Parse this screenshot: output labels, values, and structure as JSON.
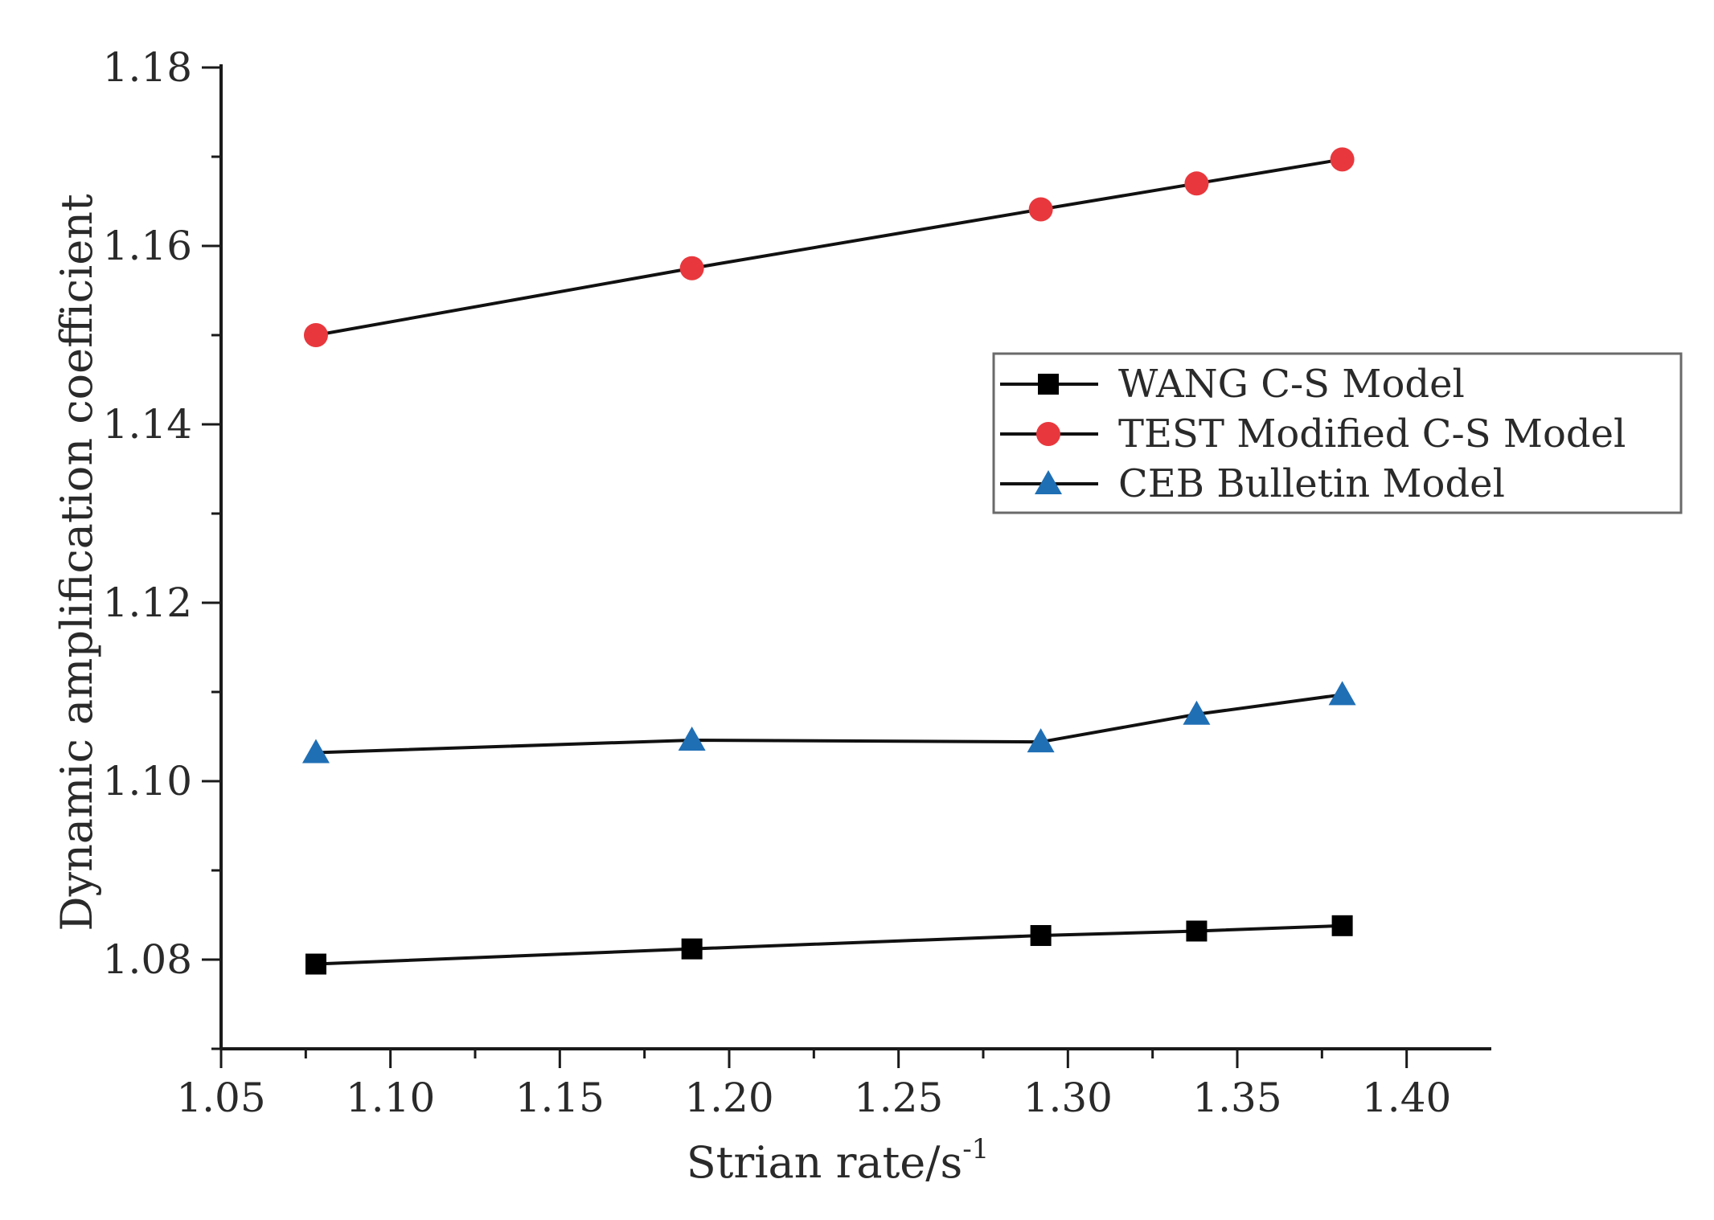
{
  "chart_data": {
    "type": "line",
    "title": "",
    "xlabel": "Strian rate/s",
    "xlabel_superscript": "-1",
    "ylabel": "Dynamic amplification coefficient",
    "xlim": [
      1.05,
      1.425
    ],
    "ylim": [
      1.07,
      1.18
    ],
    "xticks": [
      1.05,
      1.1,
      1.15,
      1.2,
      1.25,
      1.3,
      1.35,
      1.4
    ],
    "xtick_labels": [
      "1.05",
      "1.10",
      "1.15",
      "1.20",
      "1.25",
      "1.30",
      "1.35",
      "1.40"
    ],
    "yticks": [
      1.08,
      1.1,
      1.12,
      1.14,
      1.16,
      1.18
    ],
    "ytick_labels": [
      "1.08",
      "1.10",
      "1.12",
      "1.14",
      "1.16",
      "1.18"
    ],
    "grid": false,
    "legend_position": "upper-right",
    "x": [
      1.078,
      1.189,
      1.292,
      1.338,
      1.381
    ],
    "series": [
      {
        "name": "WANG C-S Model",
        "marker": "square",
        "color": "#000000",
        "values": [
          1.0795,
          1.0812,
          1.0827,
          1.0832,
          1.0838
        ]
      },
      {
        "name": "TEST Modified C-S Model",
        "marker": "circle",
        "color": "#e8383d",
        "values": [
          1.15,
          1.1575,
          1.1641,
          1.167,
          1.1697
        ]
      },
      {
        "name": "CEB Bulletin Model",
        "marker": "triangle",
        "color": "#1f6fb5",
        "values": [
          1.1032,
          1.1046,
          1.1044,
          1.1075,
          1.1097
        ]
      }
    ]
  }
}
